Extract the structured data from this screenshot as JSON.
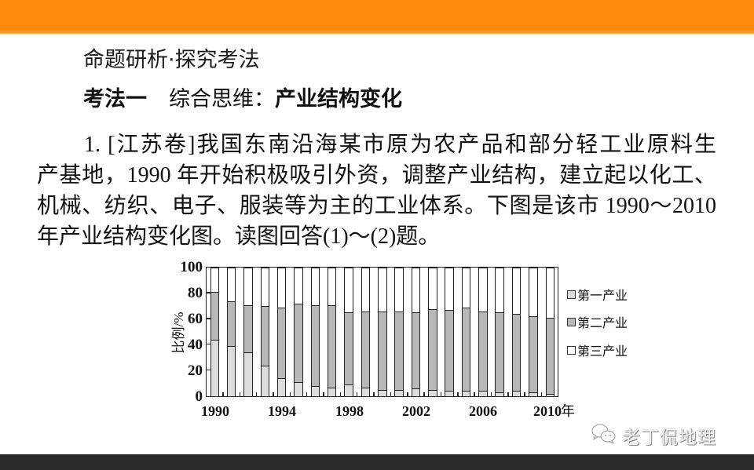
{
  "header_bar": {
    "color": "#FF8A0B"
  },
  "footer_bar": {
    "color": "#2A2A2A"
  },
  "section_title": "命题研析·探究考法",
  "method": {
    "label": "考法一",
    "category": "综合思维：",
    "topic": "产业结构变化"
  },
  "question": {
    "lines": [
      "1. [江苏卷]我国东南沿海某市原为农产品和部分轻工业原料生",
      "产基地，1990 年开始积极吸引外资，调整产业结构，建立起以化工、",
      "机械、纺织、电子、服装等为主的工业体系。下图是该市 1990～2010",
      "年产业结构变化图。读图回答(1)～(2)题。"
    ]
  },
  "chart_data": {
    "type": "bar",
    "stacked": true,
    "title": "",
    "xlabel": "年",
    "ylabel": "比例/%",
    "ylim": [
      0,
      100
    ],
    "yticks": [
      "100",
      "80",
      "60",
      "40",
      "20",
      "0"
    ],
    "xtick_labels": [
      "1990",
      "1994",
      "1998",
      "2002",
      "2006",
      "2010"
    ],
    "grid": false,
    "legend_position": "right",
    "categories": [
      1990,
      1991,
      1992,
      1993,
      1994,
      1995,
      1996,
      1997,
      1998,
      1999,
      2000,
      2001,
      2002,
      2003,
      2004,
      2005,
      2006,
      2007,
      2008,
      2009,
      2010
    ],
    "series": [
      {
        "name": "第一产业",
        "color": "#DCDCDC",
        "values": [
          44,
          39,
          34,
          24,
          14,
          11,
          8,
          7,
          9,
          7,
          5,
          5,
          6,
          5,
          4,
          4,
          4,
          3,
          4,
          3,
          2
        ]
      },
      {
        "name": "第二产业",
        "color": "#B8B8B8",
        "values": [
          37,
          35,
          37,
          46,
          55,
          61,
          63,
          64,
          56,
          59,
          61,
          61,
          59,
          63,
          63,
          65,
          62,
          62,
          60,
          59,
          59
        ]
      },
      {
        "name": "第三产业",
        "color": "#FFFFFF",
        "values": [
          19,
          26,
          29,
          30,
          31,
          28,
          29,
          29,
          35,
          34,
          34,
          34,
          35,
          32,
          33,
          31,
          34,
          35,
          36,
          38,
          39
        ]
      }
    ]
  },
  "watermark": {
    "icon": "wechat-icon",
    "text": "老丁侃地理"
  }
}
